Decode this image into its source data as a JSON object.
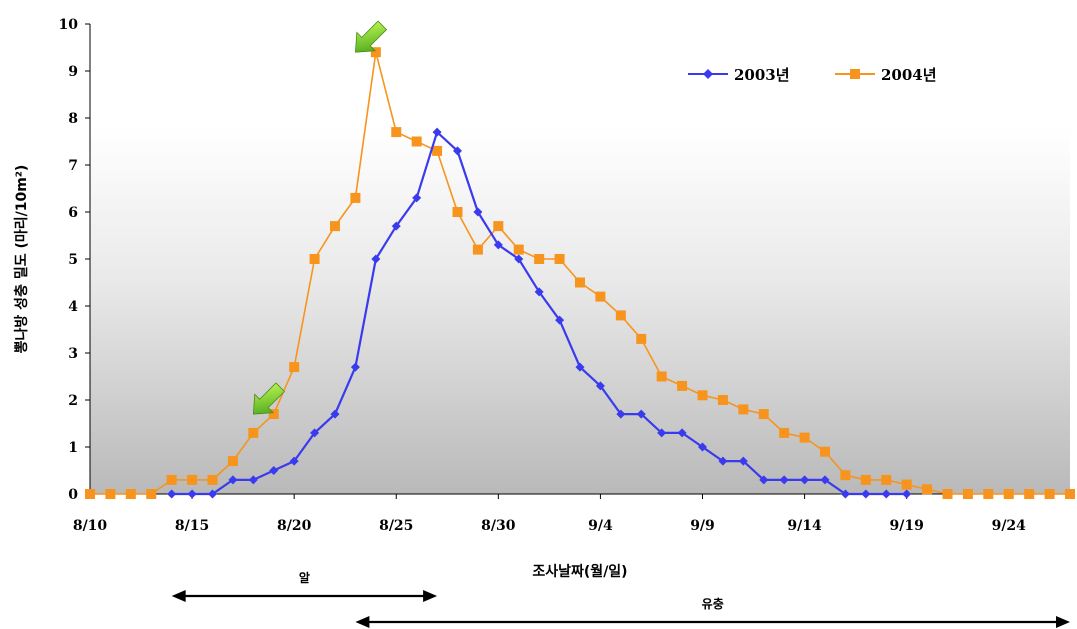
{
  "chart_data": {
    "type": "line",
    "title": "",
    "xlabel": "조사날짜(월/일)",
    "ylabel": "뽕나방 성충 밀도 (마리/10m²)",
    "ylim": [
      0,
      10
    ],
    "yticks": [
      "0",
      "1",
      "2",
      "3",
      "4",
      "5",
      "6",
      "7",
      "8",
      "9",
      "10"
    ],
    "xticks": [
      "8/10",
      "8/15",
      "8/20",
      "8/25",
      "8/30",
      "9/4",
      "9/9",
      "9/14",
      "9/19",
      "9/24"
    ],
    "xlim_days": [
      0,
      48
    ],
    "legend_position": "top-right",
    "grid": false,
    "series": [
      {
        "name": "2003년",
        "color": "#3a3aee",
        "marker": "diamond",
        "x": [
          "8/14",
          "8/15",
          "8/16",
          "8/17",
          "8/18",
          "8/19",
          "8/20",
          "8/21",
          "8/22",
          "8/23",
          "8/24",
          "8/25",
          "8/26",
          "8/27",
          "8/28",
          "8/29",
          "8/30",
          "8/31",
          "9/1",
          "9/2",
          "9/3",
          "9/4",
          "9/5",
          "9/6",
          "9/7",
          "9/8",
          "9/9",
          "9/10",
          "9/11",
          "9/12",
          "9/13",
          "9/14",
          "9/15",
          "9/16",
          "9/17",
          "9/18",
          "9/19"
        ],
        "y": [
          0,
          0,
          0,
          0.3,
          0.3,
          0.5,
          0.7,
          1.3,
          1.7,
          2.7,
          5.0,
          5.7,
          6.3,
          7.7,
          7.3,
          6.0,
          5.3,
          5.0,
          4.3,
          3.7,
          2.7,
          2.3,
          1.7,
          1.7,
          1.3,
          1.3,
          1.0,
          0.7,
          0.7,
          0.3,
          0.3,
          0.3,
          0.3,
          0,
          0,
          0,
          0
        ]
      },
      {
        "name": "2004년",
        "color": "#f7941d",
        "marker": "square",
        "x": [
          "8/10",
          "8/11",
          "8/12",
          "8/13",
          "8/14",
          "8/15",
          "8/16",
          "8/17",
          "8/18",
          "8/19",
          "8/20",
          "8/21",
          "8/22",
          "8/23",
          "8/24",
          "8/25",
          "8/26",
          "8/27",
          "8/28",
          "8/29",
          "8/30",
          "8/31",
          "9/1",
          "9/2",
          "9/3",
          "9/4",
          "9/5",
          "9/6",
          "9/7",
          "9/8",
          "9/9",
          "9/10",
          "9/11",
          "9/12",
          "9/13",
          "9/14",
          "9/15",
          "9/16",
          "9/17",
          "9/18",
          "9/19",
          "9/20",
          "9/21",
          "9/22",
          "9/23",
          "9/24",
          "9/25",
          "9/26",
          "9/27"
        ],
        "y": [
          0,
          0,
          0,
          0,
          0.3,
          0.3,
          0.3,
          0.7,
          1.3,
          1.7,
          2.7,
          5.0,
          5.7,
          6.3,
          9.4,
          7.7,
          7.5,
          7.3,
          6.0,
          5.2,
          5.7,
          5.2,
          5.0,
          5.0,
          4.5,
          4.2,
          3.8,
          3.3,
          2.5,
          2.3,
          2.1,
          2.0,
          1.8,
          1.7,
          1.3,
          1.2,
          0.9,
          0.4,
          0.3,
          0.3,
          0.2,
          0.1,
          0,
          0,
          0,
          0,
          0,
          0,
          0
        ]
      }
    ],
    "annotations": {
      "arrows": [
        {
          "name": "green-arrow-upper",
          "x": "8/23",
          "y": 9.4
        },
        {
          "name": "green-arrow-lower",
          "x": "8/18",
          "y": 1.7
        }
      ],
      "phases": [
        {
          "label": "알",
          "from": "8/14",
          "to": "8/27"
        },
        {
          "label": "유충",
          "from": "8/23",
          "to": "9/27"
        }
      ]
    }
  }
}
